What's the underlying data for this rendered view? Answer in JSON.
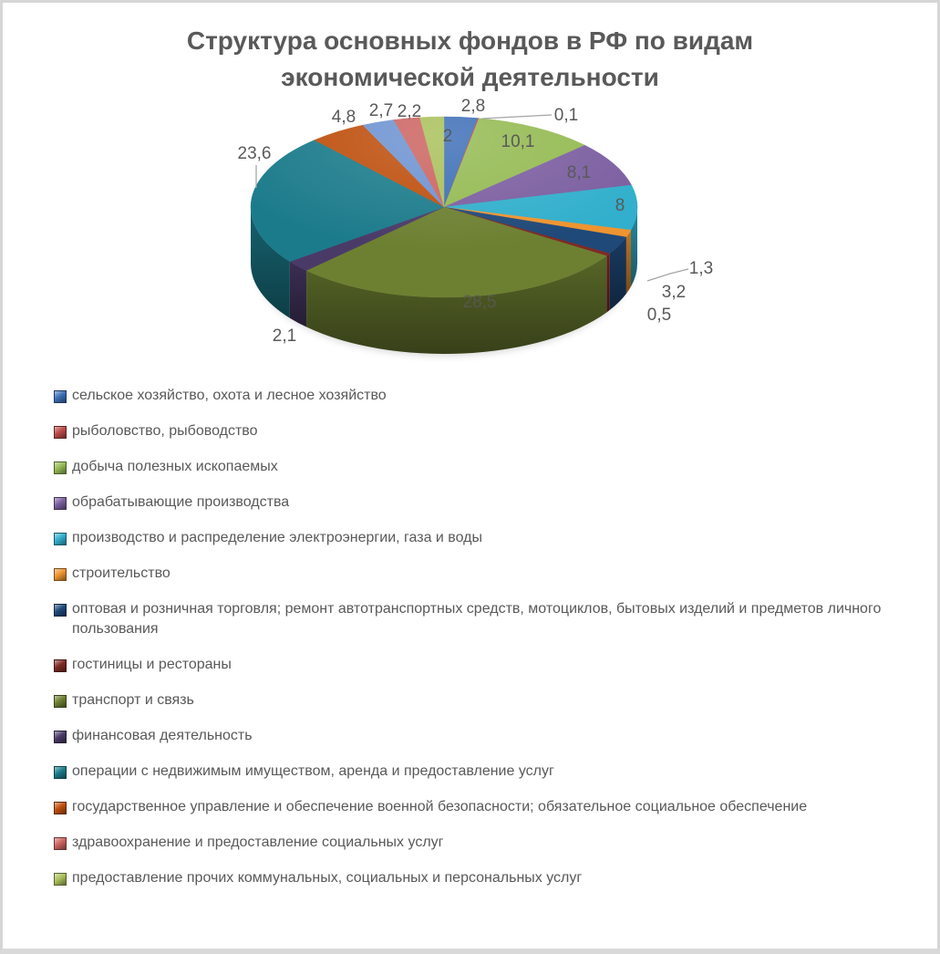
{
  "page": {
    "background_color": "#ffffff",
    "border_color": "#d6d6d6"
  },
  "chart": {
    "title_line1": "Структура основных фондов в РФ по видам",
    "title_line2": "экономической деятельности",
    "title_color": "#595959",
    "label_color": "#595959",
    "leader_line_color": "#a6a6a6"
  },
  "chart_data": {
    "type": "pie",
    "style": "3d",
    "title": "Структура основных фондов в РФ по видам экономической деятельности",
    "unit": "percent",
    "start_angle_deg": 0,
    "direction": "clockwise",
    "legend_position": "bottom-left",
    "slices": [
      {
        "value": 2.8,
        "label": "2,8",
        "color": "#3E6FB7",
        "legend": "сельское хозяйство, охота и лесное хозяйство"
      },
      {
        "value": 0.1,
        "label": "0,1",
        "color": "#BA4A47",
        "legend": "рыболовство, рыбоводство"
      },
      {
        "value": 10.1,
        "label": "10,1",
        "color": "#94BA52",
        "legend": "добыча полезных ископаемых"
      },
      {
        "value": 8.1,
        "label": "8,1",
        "color": "#7B5EA0",
        "legend": "обрабатывающие производства"
      },
      {
        "value": 8,
        "label": "8",
        "color": "#31AFCC",
        "legend": "производство и распределение электроэнергии, газа и воды"
      },
      {
        "value": 1.3,
        "label": "1,3",
        "color": "#EE9430",
        "legend": "строительство"
      },
      {
        "value": 3.2,
        "label": "3,2",
        "color": "#1F4979",
        "legend": "оптовая и розничная торговля; ремонт автотранспортных средств, мотоциклов, бытовых изделий и предметов личного пользования"
      },
      {
        "value": 0.5,
        "label": "0,5",
        "color": "#7E2B25",
        "legend": "гостиницы и рестораны"
      },
      {
        "value": 28.5,
        "label": "28,5",
        "color": "#6D8031",
        "legend": "транспорт и связь"
      },
      {
        "value": 2.1,
        "label": "2,1",
        "color": "#4A3A68",
        "legend": "финансовая деятельность"
      },
      {
        "value": 23.6,
        "label": "23,6",
        "color": "#1C7B8B",
        "legend": "операции с недвижимым имуществом, аренда и предоставление услуг"
      },
      {
        "value": 4.8,
        "label": "4,8",
        "color": "#BE4F0D",
        "legend": "государственное управление и обеспечение военной безопасности; обязательное социальное обеспечение"
      },
      {
        "value": 2.7,
        "label": "2,7",
        "color": "#6D93D1",
        "legend": null
      },
      {
        "value": 2.2,
        "label": "2,2",
        "color": "#CC6461",
        "legend": "здравоохранение и предоставление социальных услуг"
      },
      {
        "value": 2,
        "label": "2",
        "color": "#A9C05B",
        "legend": "предоставление прочих коммунальных, социальных и персональных услуг"
      }
    ]
  }
}
